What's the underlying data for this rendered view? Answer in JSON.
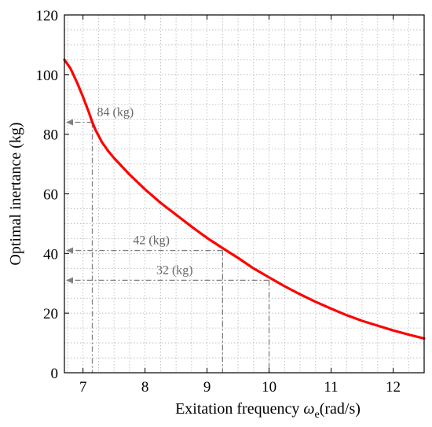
{
  "chart_data": {
    "type": "line",
    "xlabel": "Exitation frequency ω_e(rad/s)",
    "xlabel_parts": {
      "main": "Exitation frequency ",
      "symbol": "ω",
      "subscript": "e",
      "unit": "(rad/s)"
    },
    "ylabel": "Optimal inertance (kg)",
    "xlim": [
      6.7,
      12.5
    ],
    "ylim": [
      0,
      120
    ],
    "xticks": [
      7,
      8,
      9,
      10,
      11,
      12
    ],
    "yticks": [
      0,
      20,
      40,
      60,
      80,
      100,
      120
    ],
    "grid": true,
    "series": [
      {
        "color": "#ff0000",
        "x": [
          6.7,
          6.8,
          6.9,
          7.0,
          7.1,
          7.15,
          7.2,
          7.3,
          7.4,
          7.5,
          7.75,
          8.0,
          8.25,
          8.5,
          8.75,
          9.0,
          9.25,
          9.5,
          9.75,
          10.0,
          10.25,
          10.5,
          10.75,
          11.0,
          11.25,
          11.5,
          11.75,
          12.0,
          12.25,
          12.5
        ],
        "y": [
          105,
          102,
          97.5,
          92.5,
          87,
          84,
          81.5,
          77.5,
          74.5,
          72,
          66.5,
          61.5,
          57,
          53,
          49,
          45.2,
          41.8,
          38.5,
          35,
          32,
          29,
          26.3,
          23.8,
          21.5,
          19.3,
          17.4,
          15.8,
          14.2,
          12.8,
          11.5
        ]
      }
    ],
    "annotations": [
      {
        "label": "84 (kg)",
        "x": 7.15,
        "y": 84
      },
      {
        "label": "42 (kg)",
        "x": 9.25,
        "y": 41
      },
      {
        "label": "32 (kg)",
        "x": 10.0,
        "y": 31
      }
    ],
    "annotation_color": "#808080"
  }
}
